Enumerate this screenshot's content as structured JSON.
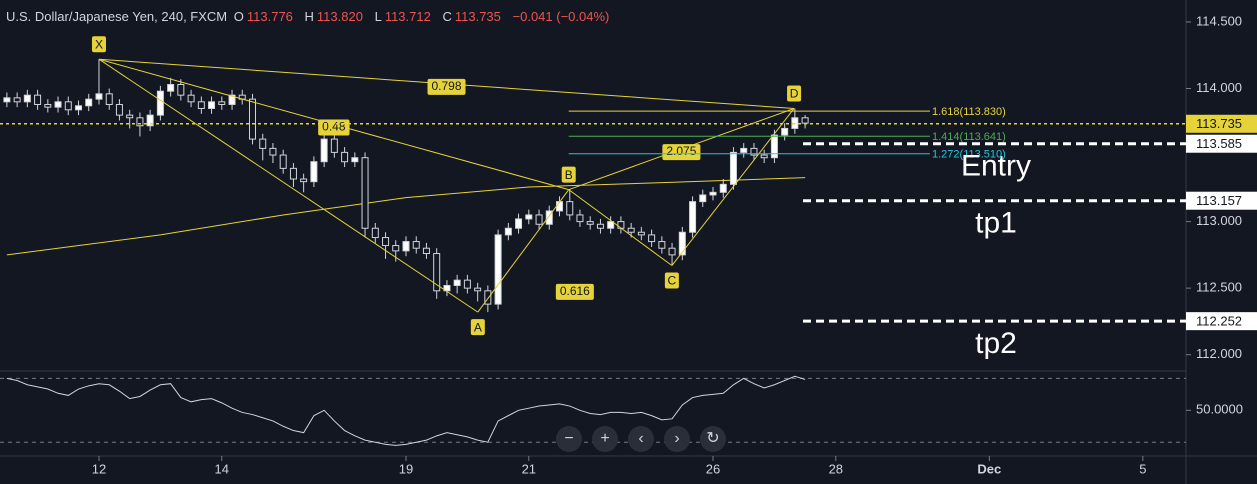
{
  "chart_data": {
    "type": "candlestick",
    "header": {
      "symbol": "U.S. Dollar/Japanese Yen, 240, FXCM",
      "o_label": "O",
      "open": "113.776",
      "h_label": "H",
      "high": "113.820",
      "l_label": "L",
      "low": "113.712",
      "c_label": "C",
      "close": "113.735",
      "change": "−0.041 (−0.04%)"
    },
    "x": [
      -1.5,
      -1.333,
      -1.167,
      -1.0,
      -0.833,
      -0.667,
      -0.5,
      -0.333,
      -0.167,
      0.0,
      0.167,
      0.333,
      0.5,
      0.667,
      0.833,
      1.0,
      1.167,
      1.333,
      1.5,
      1.667,
      1.833,
      2.0,
      2.167,
      2.333,
      2.5,
      2.667,
      2.833,
      3.0,
      3.167,
      3.333,
      3.5,
      3.667,
      3.833,
      4.0,
      4.167,
      4.333,
      4.5,
      4.667,
      4.833,
      5.0,
      5.167,
      5.333,
      5.5,
      5.667,
      5.833,
      6.0,
      6.167,
      6.333,
      6.5,
      6.667,
      6.833,
      7.0,
      7.167,
      7.333,
      7.5,
      7.667,
      7.833,
      8.0,
      8.167,
      8.333,
      8.5,
      8.667,
      8.833,
      9.0,
      9.167,
      9.333,
      9.5,
      9.667,
      9.833,
      10.0,
      10.167,
      10.333,
      10.5,
      10.667,
      10.833,
      11.0,
      11.167,
      11.333,
      11.5
    ],
    "candles": [
      [
        113.9,
        113.97,
        113.86,
        113.93
      ],
      [
        113.93,
        113.97,
        113.86,
        113.9
      ],
      [
        113.9,
        113.99,
        113.86,
        113.95
      ],
      [
        113.95,
        113.99,
        113.84,
        113.88
      ],
      [
        113.88,
        113.92,
        113.82,
        113.86
      ],
      [
        113.86,
        113.94,
        113.82,
        113.9
      ],
      [
        113.9,
        113.94,
        113.8,
        113.84
      ],
      [
        113.84,
        113.91,
        113.8,
        113.87
      ],
      [
        113.87,
        113.96,
        113.83,
        113.92
      ],
      [
        113.92,
        114.22,
        113.88,
        113.96
      ],
      [
        113.96,
        114.0,
        113.84,
        113.88
      ],
      [
        113.88,
        113.92,
        113.76,
        113.8
      ],
      [
        113.8,
        113.84,
        113.7,
        113.78
      ],
      [
        113.78,
        113.82,
        113.64,
        113.72
      ],
      [
        113.72,
        113.84,
        113.68,
        113.8
      ],
      [
        113.8,
        114.02,
        113.76,
        113.98
      ],
      [
        113.98,
        114.08,
        113.94,
        114.03
      ],
      [
        114.03,
        114.07,
        113.91,
        113.95
      ],
      [
        113.95,
        113.99,
        113.86,
        113.9
      ],
      [
        113.9,
        113.94,
        113.81,
        113.85
      ],
      [
        113.85,
        113.94,
        113.81,
        113.9
      ],
      [
        113.9,
        113.94,
        113.84,
        113.88
      ],
      [
        113.88,
        113.99,
        113.84,
        113.95
      ],
      [
        113.95,
        113.99,
        113.88,
        113.92
      ],
      [
        113.92,
        113.96,
        113.58,
        113.62
      ],
      [
        113.62,
        113.66,
        113.46,
        113.55
      ],
      [
        113.55,
        113.59,
        113.44,
        113.5
      ],
      [
        113.5,
        113.54,
        113.36,
        113.4
      ],
      [
        113.4,
        113.44,
        113.26,
        113.32
      ],
      [
        113.32,
        113.36,
        113.22,
        113.3
      ],
      [
        113.3,
        113.49,
        113.26,
        113.45
      ],
      [
        113.45,
        113.66,
        113.41,
        113.62
      ],
      [
        113.62,
        113.66,
        113.48,
        113.52
      ],
      [
        113.52,
        113.56,
        113.41,
        113.45
      ],
      [
        113.45,
        113.52,
        113.41,
        113.48
      ],
      [
        113.48,
        113.52,
        112.88,
        112.95
      ],
      [
        112.95,
        112.99,
        112.84,
        112.88
      ],
      [
        112.88,
        112.92,
        112.72,
        112.82
      ],
      [
        112.82,
        112.86,
        112.7,
        112.78
      ],
      [
        112.78,
        112.89,
        112.74,
        112.85
      ],
      [
        112.85,
        112.89,
        112.76,
        112.8
      ],
      [
        112.8,
        112.84,
        112.72,
        112.76
      ],
      [
        112.76,
        112.8,
        112.42,
        112.48
      ],
      [
        112.48,
        112.56,
        112.44,
        112.52
      ],
      [
        112.52,
        112.6,
        112.46,
        112.56
      ],
      [
        112.56,
        112.6,
        112.46,
        112.5
      ],
      [
        112.5,
        112.54,
        112.4,
        112.48
      ],
      [
        112.48,
        112.52,
        112.32,
        112.38
      ],
      [
        112.38,
        112.94,
        112.34,
        112.9
      ],
      [
        112.9,
        112.99,
        112.86,
        112.95
      ],
      [
        112.95,
        113.06,
        112.91,
        113.02
      ],
      [
        113.02,
        113.09,
        112.98,
        113.05
      ],
      [
        113.05,
        113.09,
        112.94,
        112.98
      ],
      [
        112.98,
        113.12,
        112.94,
        113.08
      ],
      [
        113.08,
        113.19,
        113.04,
        113.15
      ],
      [
        113.15,
        113.24,
        113.01,
        113.05
      ],
      [
        113.05,
        113.09,
        112.96,
        113.0
      ],
      [
        113.0,
        113.04,
        112.94,
        112.98
      ],
      [
        112.98,
        113.02,
        112.91,
        112.95
      ],
      [
        112.95,
        113.04,
        112.91,
        113.0
      ],
      [
        113.0,
        113.04,
        112.91,
        112.95
      ],
      [
        112.95,
        112.99,
        112.88,
        112.92
      ],
      [
        112.92,
        112.96,
        112.86,
        112.9
      ],
      [
        112.9,
        112.94,
        112.81,
        112.85
      ],
      [
        112.85,
        112.89,
        112.76,
        112.8
      ],
      [
        112.8,
        112.84,
        112.67,
        112.75
      ],
      [
        112.75,
        112.96,
        112.71,
        112.92
      ],
      [
        112.92,
        113.19,
        112.88,
        113.15
      ],
      [
        113.15,
        113.24,
        113.11,
        113.2
      ],
      [
        113.2,
        113.26,
        113.16,
        113.22
      ],
      [
        113.22,
        113.32,
        113.18,
        113.28
      ],
      [
        113.28,
        113.56,
        113.24,
        113.52
      ],
      [
        113.52,
        113.59,
        113.48,
        113.55
      ],
      [
        113.55,
        113.59,
        113.46,
        113.5
      ],
      [
        113.5,
        113.54,
        113.44,
        113.48
      ],
      [
        113.48,
        113.69,
        113.44,
        113.65
      ],
      [
        113.65,
        113.74,
        113.61,
        113.7
      ],
      [
        113.7,
        113.85,
        113.66,
        113.78
      ],
      [
        113.78,
        113.8,
        113.7,
        113.74
      ]
    ],
    "ma": {
      "color": "#e6d33a",
      "x": [
        -1.5,
        1,
        3,
        5,
        7,
        9,
        11.5
      ],
      "values": [
        112.75,
        112.9,
        113.05,
        113.18,
        113.26,
        113.29,
        113.33
      ]
    },
    "points": [
      {
        "label": "X",
        "x": 0.0,
        "y": 114.22
      },
      {
        "label": "A",
        "x": 6.17,
        "y": 112.32
      },
      {
        "label": "B",
        "x": 7.65,
        "y": 113.24
      },
      {
        "label": "C",
        "x": 9.33,
        "y": 112.67
      },
      {
        "label": "D",
        "x": 11.32,
        "y": 113.85
      }
    ],
    "ratios": [
      "0.798",
      "0.48",
      "2.075",
      "0.616"
    ],
    "fib_levels": [
      {
        "label": "1.618(113.830)",
        "value": 113.83,
        "color": "#e6d33a"
      },
      {
        "label": "1.414(113.641)",
        "value": 113.641,
        "color": "#4caf50"
      },
      {
        "label": "1.272(113.510)",
        "value": 113.51,
        "color": "#26c6da"
      }
    ],
    "current_price": 113.735,
    "price_lines": [
      {
        "value": 113.585,
        "text": "Entry"
      },
      {
        "value": 113.157,
        "text": "tp1"
      },
      {
        "value": 112.252,
        "text": "tp2"
      }
    ],
    "xlim": [
      -1.612,
      17.703
    ],
    "ylim": [
      111.885,
      114.665
    ],
    "yticks": [
      {
        "value": 114.5,
        "label": "114.500"
      },
      {
        "value": 114.0,
        "label": "114.000"
      },
      {
        "value": 113.0,
        "label": "113.000"
      },
      {
        "value": 112.5,
        "label": "112.500"
      },
      {
        "value": 112.0,
        "label": "112.000"
      }
    ],
    "xticks": [
      {
        "value": 0,
        "label": "12"
      },
      {
        "value": 2,
        "label": "14"
      },
      {
        "value": 5,
        "label": "19"
      },
      {
        "value": 7,
        "label": "21"
      },
      {
        "value": 10,
        "label": "26"
      },
      {
        "value": 12,
        "label": "28"
      },
      {
        "value": 14.5,
        "label": "Dec"
      },
      {
        "value": 17,
        "label": "5"
      }
    ],
    "oscillator": {
      "color": "#d1d4dc",
      "ylim": [
        8,
        86
      ],
      "yticks": [
        {
          "value": 50,
          "label": "50.0000"
        }
      ],
      "levels": [
        80,
        20
      ],
      "values": [
        80,
        78,
        74,
        72,
        70,
        66,
        64,
        70,
        73,
        75,
        74,
        68,
        61,
        63,
        69,
        74,
        75,
        62,
        58,
        60,
        61,
        57,
        52,
        48,
        46,
        43,
        40,
        35,
        31,
        29,
        45,
        50,
        40,
        31,
        26,
        22,
        20,
        18,
        17,
        18,
        20,
        22,
        26,
        29,
        27,
        25,
        22,
        20,
        40,
        45,
        50,
        52,
        54,
        55,
        56,
        54,
        50,
        47,
        46,
        48,
        48,
        47,
        48,
        45,
        41,
        42,
        55,
        62,
        64,
        65,
        66,
        74,
        80,
        75,
        71,
        74,
        78,
        82,
        79
      ]
    }
  }
}
